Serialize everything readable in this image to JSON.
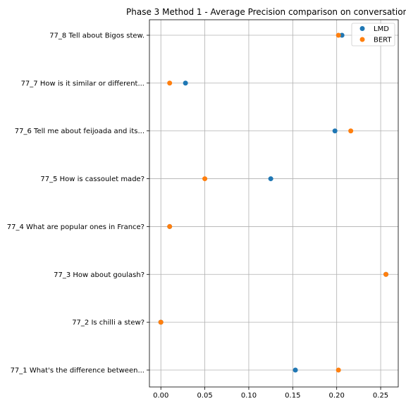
{
  "chart_data": {
    "type": "scatter",
    "title": "Phase 3 Method 1 - Average Precision comparison on conversation",
    "xlabel": "",
    "ylabel": "",
    "xlim": [
      -0.013,
      0.27
    ],
    "x_ticks": [
      0.0,
      0.05,
      0.1,
      0.15,
      0.2,
      0.25
    ],
    "x_tick_labels": [
      "0.00",
      "0.05",
      "0.10",
      "0.15",
      "0.20",
      "0.25"
    ],
    "categories": [
      "77_1 What's the difference between...",
      "77_2 Is chilli a stew?",
      "77_3 How about goulash?",
      "77_4 What are popular ones in France?",
      "77_5 How is cassoulet made?",
      "77_6 Tell me about feijoada and its...",
      "77_7 How is it similar or different...",
      "77_8 Tell about Bigos stew."
    ],
    "grid": true,
    "legend_position": "top-right",
    "series": [
      {
        "name": "LMD",
        "color": "#1f77b4",
        "values": [
          0.153,
          0.0,
          0.256,
          0.01,
          0.125,
          0.198,
          0.028,
          0.206
        ]
      },
      {
        "name": "BERT",
        "color": "#ff7f0e",
        "values": [
          0.202,
          0.0,
          0.256,
          0.01,
          0.05,
          0.216,
          0.01,
          0.202
        ]
      }
    ]
  }
}
